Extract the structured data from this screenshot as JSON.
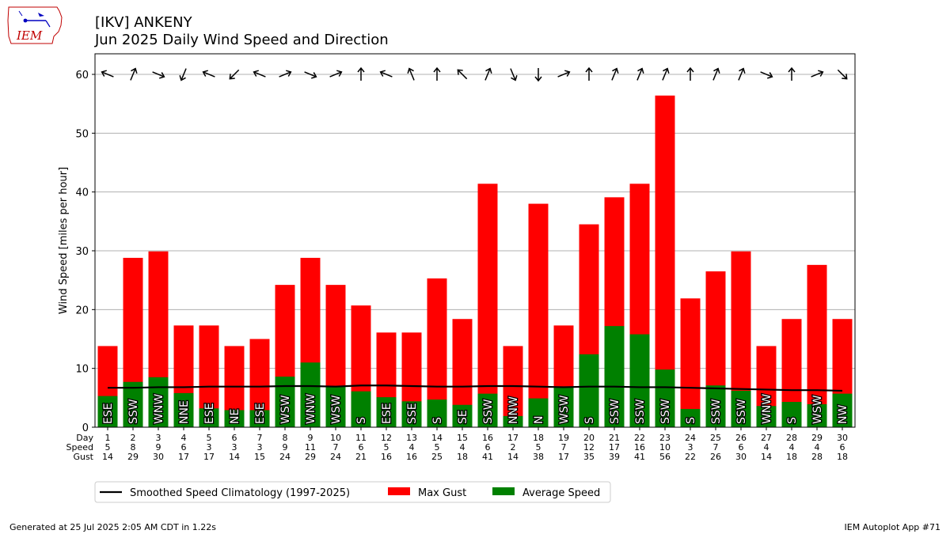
{
  "header": {
    "logo_text": "IEM",
    "title_line1": "[IKV] ANKENY",
    "title_line2": "Jun 2025 Daily Wind Speed and Direction"
  },
  "footer": {
    "left": "Generated at 25 Jul 2025 2:05 AM CDT in 1.22s",
    "right": "IEM Autoplot App #71"
  },
  "colors": {
    "gust": "#ff0000",
    "speed": "#008000",
    "climatology": "#000000",
    "grid": "#b0b0b0"
  },
  "chart_data": {
    "type": "bar",
    "ylabel": "Wind Speed [miles per hour]",
    "ylim": [
      0,
      63.5
    ],
    "yticks": [
      0,
      10,
      20,
      30,
      40,
      50,
      60
    ],
    "grid": true,
    "legend_position": "bottom",
    "row_labels": [
      "Day",
      "Speed",
      "Gust"
    ],
    "days": [
      1,
      2,
      3,
      4,
      5,
      6,
      7,
      8,
      9,
      10,
      11,
      12,
      13,
      14,
      15,
      16,
      17,
      18,
      19,
      20,
      21,
      22,
      23,
      24,
      25,
      26,
      27,
      28,
      29,
      30
    ],
    "speed_labels": [
      "5",
      "8",
      "9",
      "6",
      "3",
      "3",
      "3",
      "9",
      "11",
      "7",
      "6",
      "5",
      "4",
      "5",
      "4",
      "6",
      "2",
      "5",
      "7",
      "12",
      "17",
      "16",
      "10",
      "3",
      "7",
      "6",
      "4",
      "4",
      "4",
      "6"
    ],
    "gust_labels": [
      "14",
      "29",
      "30",
      "17",
      "17",
      "14",
      "15",
      "24",
      "29",
      "24",
      "21",
      "16",
      "16",
      "25",
      "18",
      "41",
      "14",
      "38",
      "17",
      "35",
      "39",
      "41",
      "56",
      "22",
      "26",
      "30",
      "14",
      "18",
      "28",
      "18"
    ],
    "direction_labels": [
      "ESE",
      "SSW",
      "WNW",
      "NNE",
      "ESE",
      "NE",
      "ESE",
      "WSW",
      "WNW",
      "WSW",
      "S",
      "ESE",
      "SSE",
      "S",
      "SE",
      "SSW",
      "NNW",
      "N",
      "WSW",
      "S",
      "SSW",
      "SSW",
      "SSW",
      "S",
      "SSW",
      "SSW",
      "WNW",
      "S",
      "WSW",
      "NW"
    ],
    "direction_degrees": [
      112.5,
      202.5,
      292.5,
      22.5,
      112.5,
      45,
      112.5,
      247.5,
      292.5,
      247.5,
      180,
      112.5,
      157.5,
      180,
      135,
      202.5,
      337.5,
      0,
      247.5,
      180,
      202.5,
      202.5,
      202.5,
      180,
      202.5,
      202.5,
      292.5,
      180,
      247.5,
      315
    ],
    "series": [
      {
        "name": "Max Gust",
        "kind": "bar",
        "values": [
          13.8,
          28.8,
          29.9,
          17.3,
          17.3,
          13.8,
          15.0,
          24.2,
          28.8,
          24.2,
          20.7,
          16.1,
          16.1,
          25.3,
          18.4,
          41.4,
          13.8,
          38.0,
          17.3,
          34.5,
          39.1,
          41.4,
          56.4,
          21.9,
          26.5,
          29.9,
          13.8,
          18.4,
          27.6,
          18.4
        ]
      },
      {
        "name": "Average Speed",
        "kind": "bar",
        "values": [
          5.3,
          7.7,
          8.5,
          5.8,
          3.2,
          2.9,
          2.9,
          8.6,
          11.0,
          6.9,
          6.1,
          5.1,
          4.4,
          4.7,
          3.8,
          5.7,
          1.9,
          4.9,
          6.8,
          12.4,
          17.2,
          15.8,
          9.8,
          3.1,
          7.1,
          6.2,
          3.6,
          4.3,
          3.9,
          5.7
        ]
      },
      {
        "name": "Smoothed Speed Climatology (1997-2025)",
        "kind": "line",
        "values": [
          6.7,
          6.7,
          6.8,
          6.8,
          6.9,
          6.9,
          6.9,
          7.0,
          7.0,
          6.9,
          7.1,
          7.1,
          7.0,
          6.9,
          6.9,
          7.0,
          7.0,
          6.9,
          6.8,
          6.9,
          6.9,
          6.8,
          6.8,
          6.7,
          6.6,
          6.5,
          6.4,
          6.3,
          6.3,
          6.2
        ]
      }
    ]
  }
}
